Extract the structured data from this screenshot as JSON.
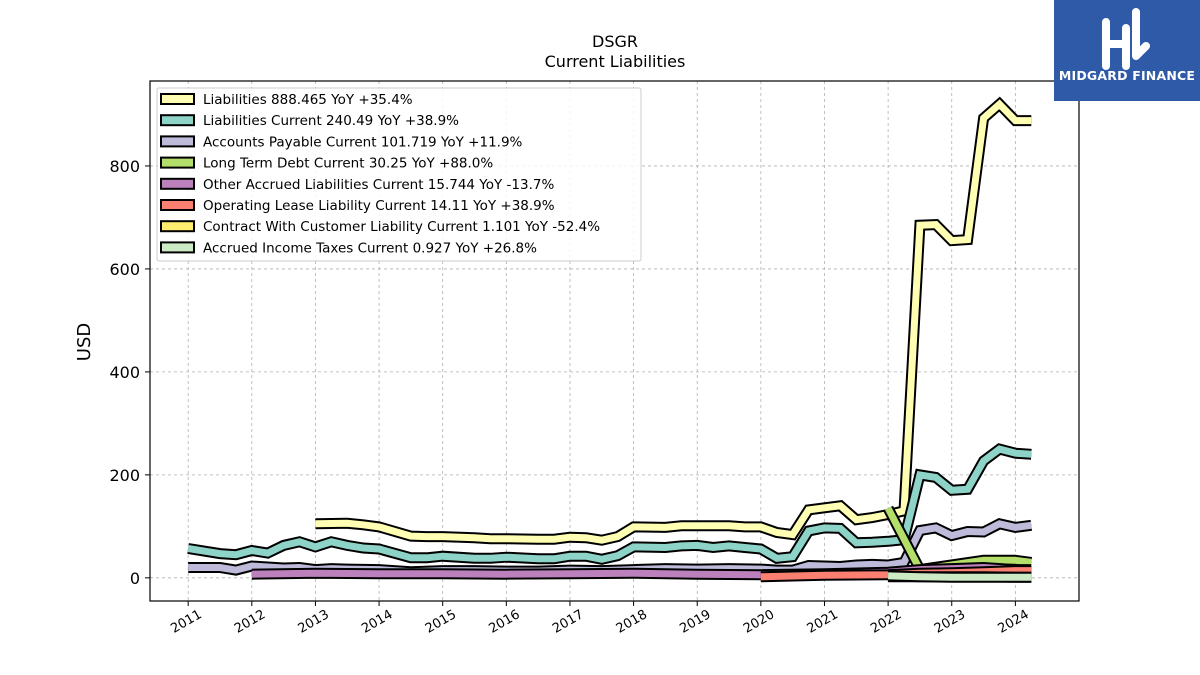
{
  "chart_data": {
    "type": "line",
    "title": "DSGR",
    "subtitle": "Current  Liabilities",
    "ylabel": "USD",
    "xlabel": "",
    "xlim": [
      2010.4,
      2025.0
    ],
    "ylim": [
      -45,
      965
    ],
    "yticks": [
      0,
      200,
      400,
      600,
      800
    ],
    "xticks": [
      "2011",
      "2012",
      "2013",
      "2014",
      "2015",
      "2016",
      "2017",
      "2018",
      "2019",
      "2020",
      "2021",
      "2022",
      "2023",
      "2024"
    ],
    "grid": true,
    "legend_position": "top-left",
    "series": [
      {
        "name": "Liabilities",
        "legend": "Liabilities  888.465 YoY +35.4%",
        "color": "#ffffb3",
        "x": [
          2013.0,
          2013.5,
          2013.75,
          2014.0,
          2014.5,
          2014.75,
          2015.0,
          2015.5,
          2015.75,
          2016.0,
          2016.5,
          2016.75,
          2017.0,
          2017.25,
          2017.5,
          2017.75,
          2018.0,
          2018.5,
          2018.75,
          2019.0,
          2019.5,
          2019.75,
          2020.0,
          2020.25,
          2020.5,
          2020.75,
          2021.0,
          2021.25,
          2021.5,
          2021.75,
          2022.0,
          2022.25,
          2022.5,
          2022.75,
          2023.0,
          2023.25,
          2023.5,
          2023.75,
          2024.0,
          2024.25
        ],
        "y": [
          105,
          106,
          103,
          99,
          81,
          80,
          80,
          78,
          76,
          76,
          75,
          75,
          79,
          78,
          73,
          80,
          99,
          98,
          101,
          101,
          101,
          99,
          99,
          88,
          84,
          132,
          136,
          140,
          113,
          117,
          123,
          130,
          685,
          686,
          655,
          657,
          893,
          920,
          888,
          888
        ]
      },
      {
        "name": "Liabilities Current",
        "legend": "Liabilities Current  240.49 YoY +38.9%",
        "color": "#8dd3c7",
        "x": [
          2011.0,
          2011.25,
          2011.5,
          2011.75,
          2012.0,
          2012.25,
          2012.5,
          2012.75,
          2013.0,
          2013.25,
          2013.5,
          2013.75,
          2014.0,
          2014.5,
          2014.75,
          2015.0,
          2015.5,
          2015.75,
          2016.0,
          2016.5,
          2016.75,
          2017.0,
          2017.25,
          2017.5,
          2017.75,
          2018.0,
          2018.5,
          2018.75,
          2019.0,
          2019.25,
          2019.5,
          2019.75,
          2020.0,
          2020.25,
          2020.5,
          2020.75,
          2021.0,
          2021.25,
          2021.5,
          2021.75,
          2022.0,
          2022.25,
          2022.5,
          2022.75,
          2023.0,
          2023.25,
          2023.5,
          2023.75,
          2024.0,
          2024.25
        ],
        "y": [
          57,
          52,
          47,
          45,
          53,
          48,
          63,
          70,
          60,
          70,
          63,
          58,
          56,
          39,
          39,
          42,
          38,
          38,
          40,
          37,
          37,
          42,
          42,
          36,
          43,
          60,
          59,
          62,
          63,
          59,
          62,
          59,
          56,
          38,
          41,
          91,
          97,
          96,
          68,
          69,
          71,
          74,
          200,
          195,
          170,
          172,
          227,
          250,
          242,
          240
        ]
      },
      {
        "name": "Accounts Payable Current",
        "legend": "Accounts Payable Current  101.719 YoY +11.9%",
        "color": "#bebada",
        "x": [
          2011.0,
          2011.5,
          2011.75,
          2012.0,
          2012.5,
          2012.75,
          2013.0,
          2013.25,
          2013.5,
          2014.0,
          2014.5,
          2015.0,
          2015.5,
          2016.0,
          2016.5,
          2017.0,
          2017.5,
          2018.0,
          2018.5,
          2019.0,
          2019.5,
          2020.0,
          2020.25,
          2020.5,
          2020.75,
          2021.0,
          2021.25,
          2021.5,
          2021.75,
          2022.0,
          2022.25,
          2022.5,
          2022.75,
          2023.0,
          2023.25,
          2023.5,
          2023.75,
          2024.0,
          2024.25
        ],
        "y": [
          20,
          20,
          15,
          23,
          19,
          20,
          16,
          18,
          17,
          16,
          12,
          14,
          14,
          13,
          13,
          15,
          14,
          16,
          18,
          17,
          18,
          17,
          15,
          15,
          24,
          23,
          22,
          25,
          26,
          25,
          30,
          92,
          97,
          82,
          90,
          89,
          105,
          98,
          102
        ]
      },
      {
        "name": "Long Term Debt Current",
        "legend": "Long Term Debt Current  30.25 YoY +88.0%",
        "color": "#b3de69",
        "x": [
          2022.0,
          2022.5,
          2023.5,
          2024.0,
          2024.25
        ],
        "y": [
          135,
          16,
          34,
          34,
          30
        ]
      },
      {
        "name": "Other Accrued Liabilities Current",
        "legend": "Other Accrued Liabilities Current  15.744 YoY -13.7%",
        "color": "#bc80bd",
        "x": [
          2012.0,
          2013.0,
          2014.0,
          2015.0,
          2016.0,
          2017.0,
          2018.0,
          2019.0,
          2020.0,
          2021.0,
          2022.0,
          2022.5,
          2023.0,
          2023.5,
          2024.0,
          2024.25
        ],
        "y": [
          7,
          9,
          8,
          8,
          7,
          8,
          9,
          7,
          6,
          8,
          11,
          16,
          18,
          20,
          16,
          16
        ]
      },
      {
        "name": "Operating Lease Liability Current",
        "legend": "Operating Lease Liability Current  14.11 YoY +38.9%",
        "color": "#fb8072",
        "x": [
          2020.0,
          2021.0,
          2022.0,
          2022.5,
          2023.0,
          2023.5,
          2024.0,
          2024.25
        ],
        "y": [
          2,
          5,
          6,
          9,
          10,
          12,
          14,
          14
        ]
      },
      {
        "name": "Contract With Customer Liability Current",
        "legend": "Contract With Customer Liability Current  1.101 YoY -52.4%",
        "color": "#ffed6f",
        "x": [
          2022.0,
          2022.5,
          2023.0,
          2023.5,
          2024.0,
          2024.25
        ],
        "y": [
          2,
          2,
          2,
          2,
          1,
          1
        ]
      },
      {
        "name": "Accrued Income Taxes Current",
        "legend": "Accrued Income Taxes Current  0.927 YoY +26.8%",
        "color": "#ccebc5",
        "x": [
          2022.0,
          2022.5,
          2023.0,
          2023.5,
          2024.0,
          2024.25
        ],
        "y": [
          4,
          2,
          1,
          1,
          1,
          1
        ]
      }
    ]
  },
  "logo": {
    "text": "MIDGARD FINANCE"
  }
}
